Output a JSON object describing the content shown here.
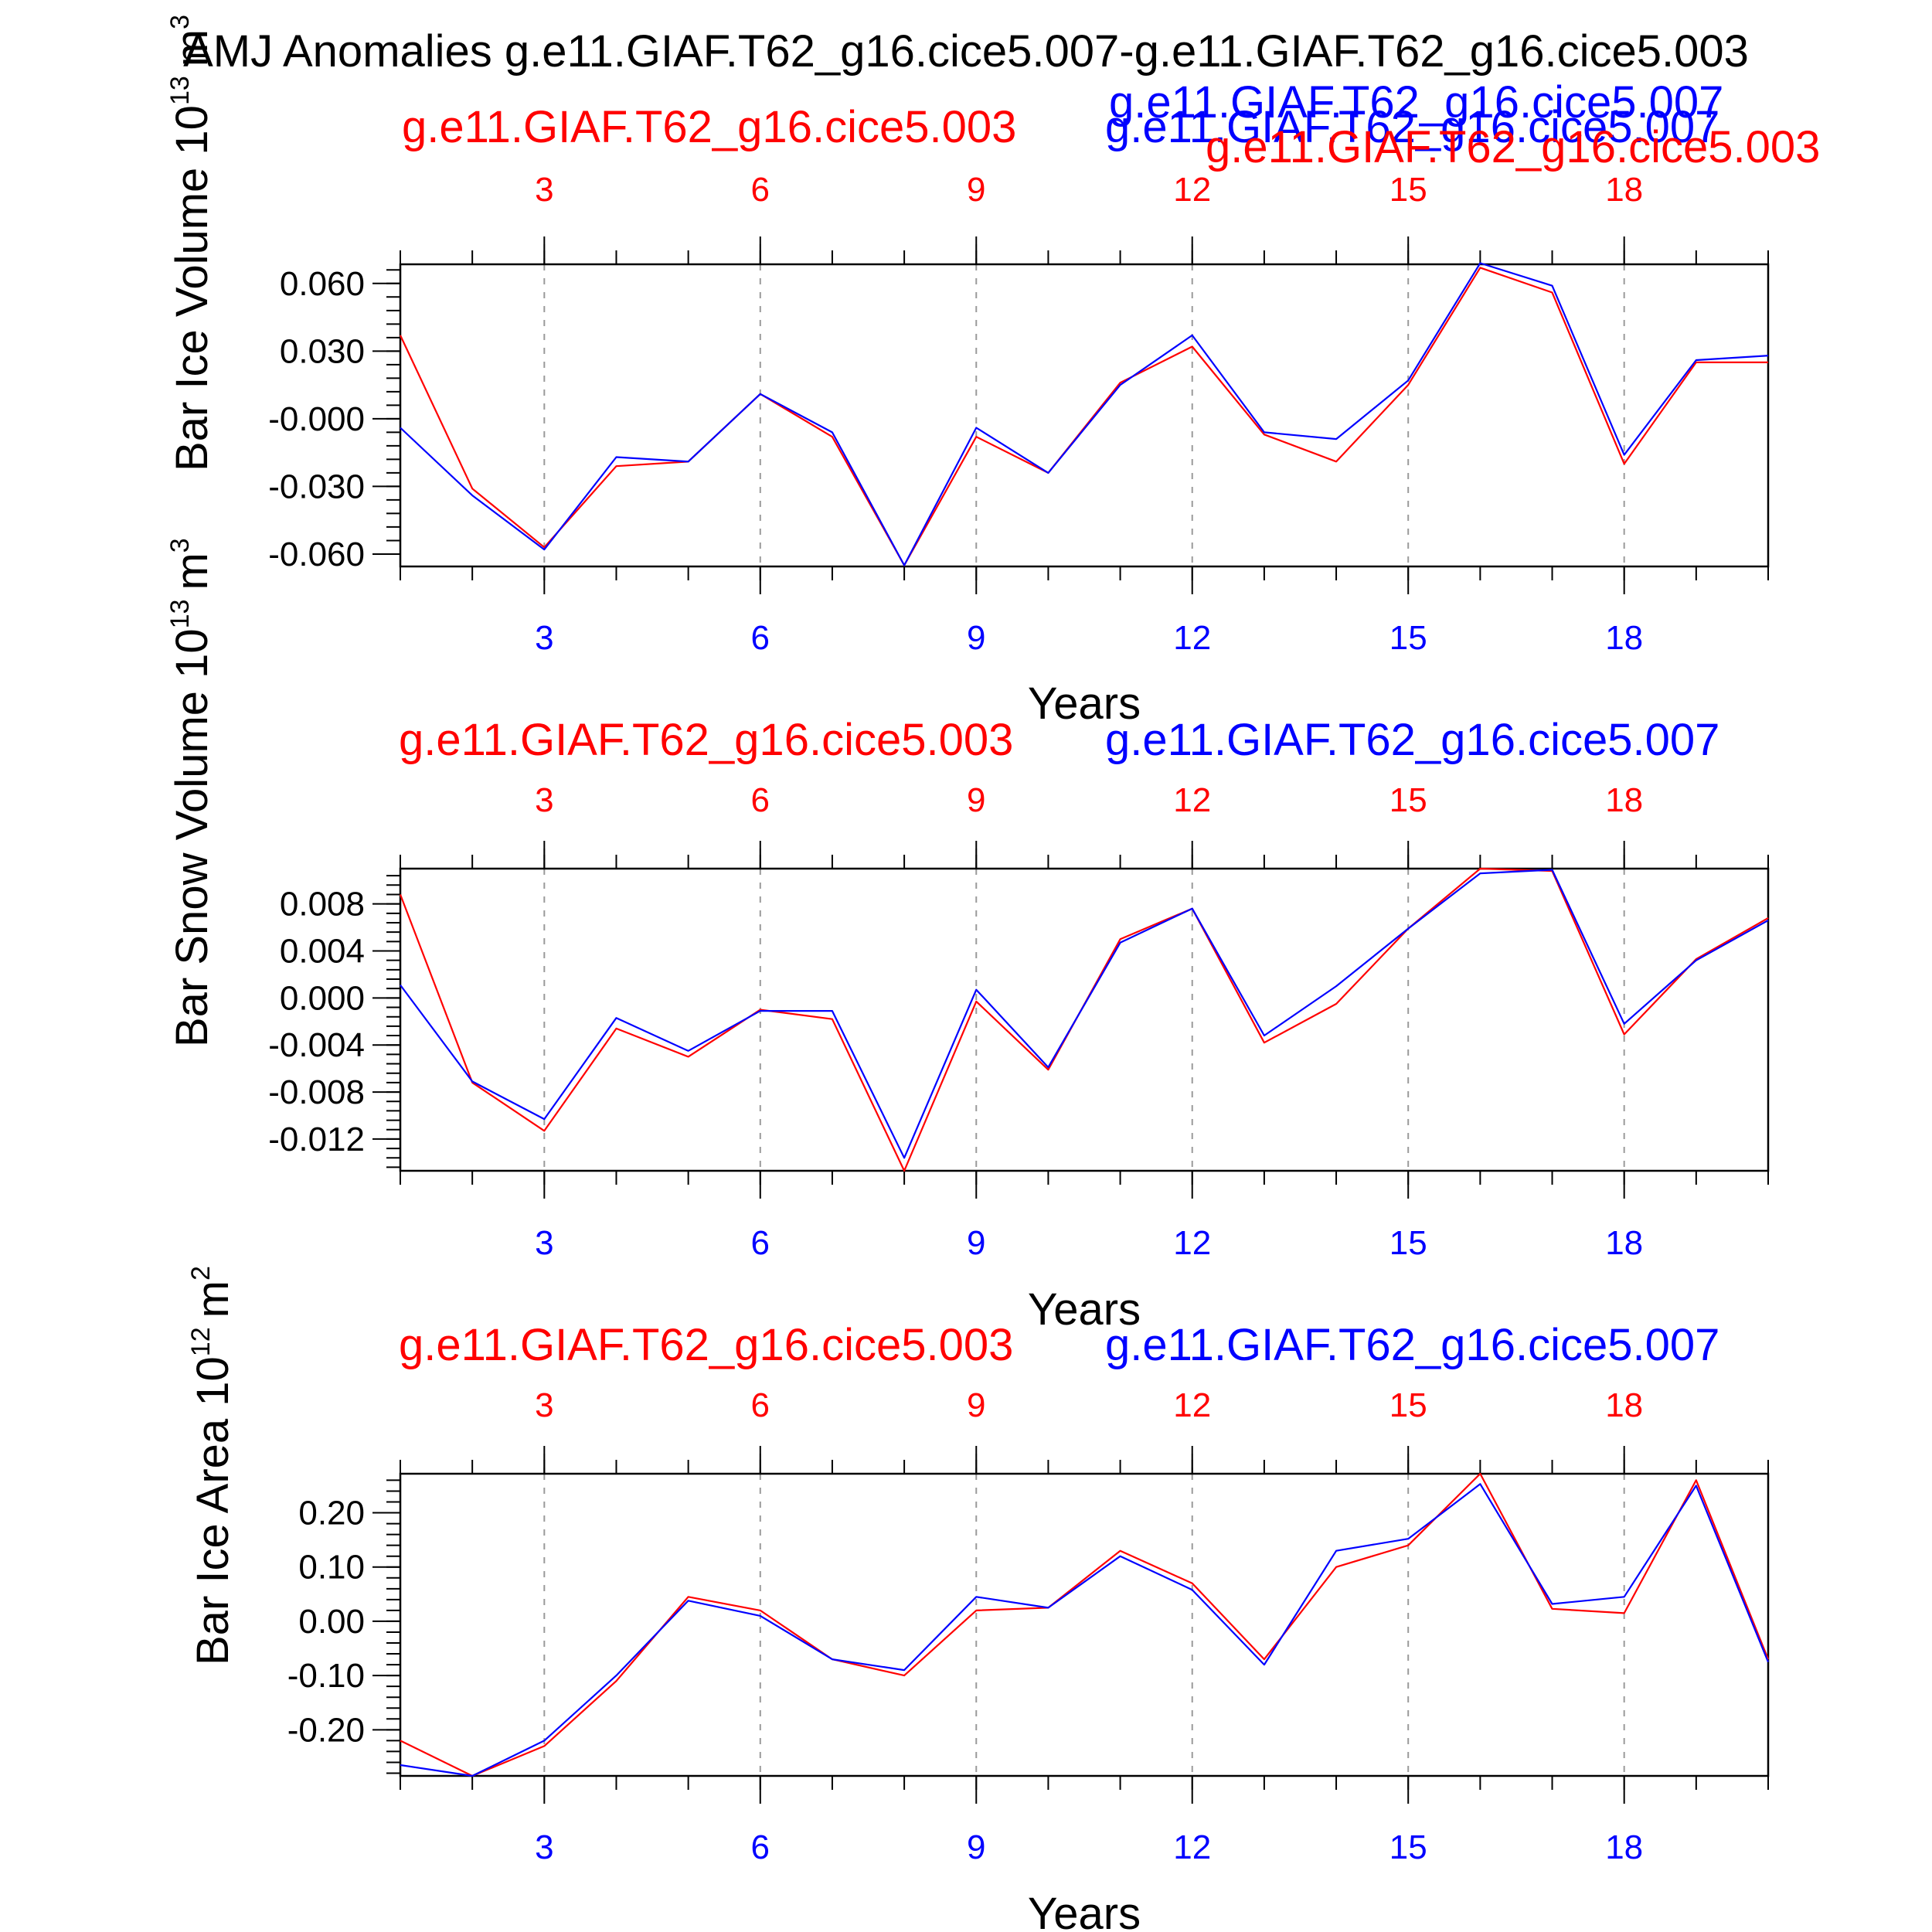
{
  "title": "AMJ Anomalies g.e11.GIAF.T62_g16.cice5.007-g.e11.GIAF.T62_g16.cice5.003",
  "colors": {
    "red": "#ff0000",
    "blue": "#0000ff",
    "axis": "#000000",
    "grid": "#9a9a9a"
  },
  "chart_data": [
    {
      "type": "line",
      "ylabel": "Bar Ice Volume 10",
      "ylabel_exp": "13",
      "ylabel_unit": "m",
      "ylabel_unit_exp": "3",
      "xlabel": "Years",
      "x_top_ticks": [
        "3",
        "6",
        "9",
        "12",
        "15",
        "18"
      ],
      "x_bottom_ticks": [
        "3",
        "6",
        "9",
        "12",
        "15",
        "18"
      ],
      "ytick_labels": [
        "0.060",
        "0.030",
        "-0.000",
        "-0.030",
        "-0.060"
      ],
      "ytick_values": [
        0.06,
        0.03,
        0.0,
        -0.03,
        -0.06
      ],
      "ylim": [
        -0.0655,
        0.0685
      ],
      "xlim": [
        1,
        20
      ],
      "top_labels": [
        {
          "text": "g.e11.GIAF.T62_g16.cice5.003",
          "color": "red"
        },
        {
          "text": "g.e11.GIAF.T62_g16.cice5.007",
          "color": "blue"
        },
        {
          "text": "g.e11.GIAF.T62_g16.cice5.007",
          "color": "blue"
        },
        {
          "text": "g.e11.GIAF.T62_g16.cice5.003",
          "color": "red"
        }
      ],
      "x": [
        1,
        2,
        3,
        4,
        5,
        6,
        7,
        8,
        9,
        10,
        11,
        12,
        13,
        14,
        15,
        16,
        17,
        18,
        19,
        20
      ],
      "series": [
        {
          "name": "g.e11.GIAF.T62_g16.cice5.003",
          "color": "red",
          "values": [
            0.037,
            -0.031,
            -0.057,
            -0.021,
            -0.019,
            0.011,
            -0.008,
            -0.065,
            -0.008,
            -0.024,
            0.016,
            0.032,
            -0.007,
            -0.019,
            0.015,
            0.067,
            0.056,
            -0.02,
            0.025,
            0.025
          ]
        },
        {
          "name": "g.e11.GIAF.T62_g16.cice5.007",
          "color": "blue",
          "values": [
            -0.004,
            -0.034,
            -0.058,
            -0.017,
            -0.019,
            0.011,
            -0.006,
            -0.065,
            -0.004,
            -0.024,
            0.015,
            0.037,
            -0.006,
            -0.009,
            0.017,
            0.069,
            0.059,
            -0.016,
            0.026,
            0.028
          ]
        }
      ]
    },
    {
      "type": "line",
      "ylabel": "Bar Snow Volume 10",
      "ylabel_exp": "13",
      "ylabel_unit": "m",
      "ylabel_unit_exp": "3",
      "xlabel": "Years",
      "x_top_ticks": [
        "3",
        "6",
        "9",
        "12",
        "15",
        "18"
      ],
      "x_bottom_ticks": [
        "3",
        "6",
        "9",
        "12",
        "15",
        "18"
      ],
      "ytick_labels": [
        "0.008",
        "0.004",
        "0.000",
        "-0.004",
        "-0.008",
        "-0.012"
      ],
      "ytick_values": [
        0.008,
        0.004,
        0.0,
        -0.004,
        -0.008,
        -0.012
      ],
      "ylim": [
        -0.0147,
        0.011
      ],
      "xlim": [
        1,
        20
      ],
      "top_labels": [
        {
          "text": "g.e11.GIAF.T62_g16.cice5.003",
          "color": "red"
        },
        {
          "text": "g.e11.GIAF.T62_g16.cice5.007",
          "color": "blue"
        }
      ],
      "x": [
        1,
        2,
        3,
        4,
        5,
        6,
        7,
        8,
        9,
        10,
        11,
        12,
        13,
        14,
        15,
        16,
        17,
        18,
        19,
        20
      ],
      "series": [
        {
          "name": "g.e11.GIAF.T62_g16.cice5.003",
          "color": "red",
          "values": [
            0.0088,
            -0.0072,
            -0.0113,
            -0.0026,
            -0.005,
            -0.001,
            -0.0018,
            -0.0147,
            -0.0003,
            -0.0061,
            0.005,
            0.0076,
            -0.0038,
            -0.0005,
            0.0059,
            0.011,
            0.0108,
            -0.0031,
            0.0033,
            0.0068
          ]
        },
        {
          "name": "g.e11.GIAF.T62_g16.cice5.007",
          "color": "blue",
          "values": [
            0.0011,
            -0.0071,
            -0.0103,
            -0.0017,
            -0.0045,
            -0.0011,
            -0.0011,
            -0.0136,
            0.0007,
            -0.0059,
            0.0047,
            0.0076,
            -0.0032,
            0.001,
            0.0059,
            0.0106,
            0.0109,
            -0.0022,
            0.0032,
            0.0066
          ]
        }
      ]
    },
    {
      "type": "line",
      "ylabel": "Bar Ice Area 10",
      "ylabel_exp": "12",
      "ylabel_unit": "m",
      "ylabel_unit_exp": "2",
      "xlabel": "Years",
      "x_top_ticks": [
        "3",
        "6",
        "9",
        "12",
        "15",
        "18"
      ],
      "x_bottom_ticks": [
        "3",
        "6",
        "9",
        "12",
        "15",
        "18"
      ],
      "ytick_labels": [
        "0.20",
        "0.10",
        "0.00",
        "-0.10",
        "-0.20"
      ],
      "ytick_values": [
        0.2,
        0.1,
        0.0,
        -0.1,
        -0.2
      ],
      "ylim": [
        -0.285,
        0.272
      ],
      "xlim": [
        1,
        20
      ],
      "top_labels": [
        {
          "text": "g.e11.GIAF.T62_g16.cice5.003",
          "color": "red"
        },
        {
          "text": "g.e11.GIAF.T62_g16.cice5.007",
          "color": "blue"
        }
      ],
      "x": [
        1,
        2,
        3,
        4,
        5,
        6,
        7,
        8,
        9,
        10,
        11,
        12,
        13,
        14,
        15,
        16,
        17,
        18,
        19,
        20
      ],
      "series": [
        {
          "name": "g.e11.GIAF.T62_g16.cice5.003",
          "color": "red",
          "values": [
            -0.22,
            -0.285,
            -0.23,
            -0.11,
            0.045,
            0.02,
            -0.07,
            -0.1,
            0.02,
            0.025,
            0.13,
            0.07,
            -0.07,
            0.1,
            0.14,
            0.272,
            0.023,
            0.015,
            0.26,
            -0.07
          ]
        },
        {
          "name": "g.e11.GIAF.T62_g16.cice5.007",
          "color": "blue",
          "values": [
            -0.265,
            -0.285,
            -0.22,
            -0.1,
            0.038,
            0.01,
            -0.07,
            -0.09,
            0.045,
            0.025,
            0.12,
            0.058,
            -0.08,
            0.13,
            0.152,
            0.253,
            0.032,
            0.045,
            0.25,
            -0.075
          ]
        }
      ]
    }
  ]
}
